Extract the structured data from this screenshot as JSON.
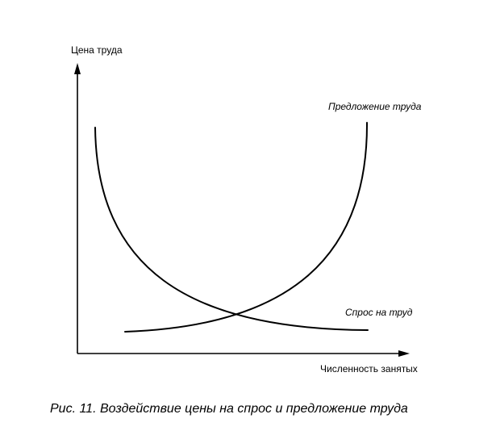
{
  "y_axis_label": "Цена труда",
  "x_axis_label": "Численность занятых",
  "curves": {
    "supply": {
      "label": "Предложение труда"
    },
    "demand": {
      "label": "Спрос на труд"
    }
  },
  "caption": "Рис. 11. Воздействие цены на спрос и предложение труда"
}
